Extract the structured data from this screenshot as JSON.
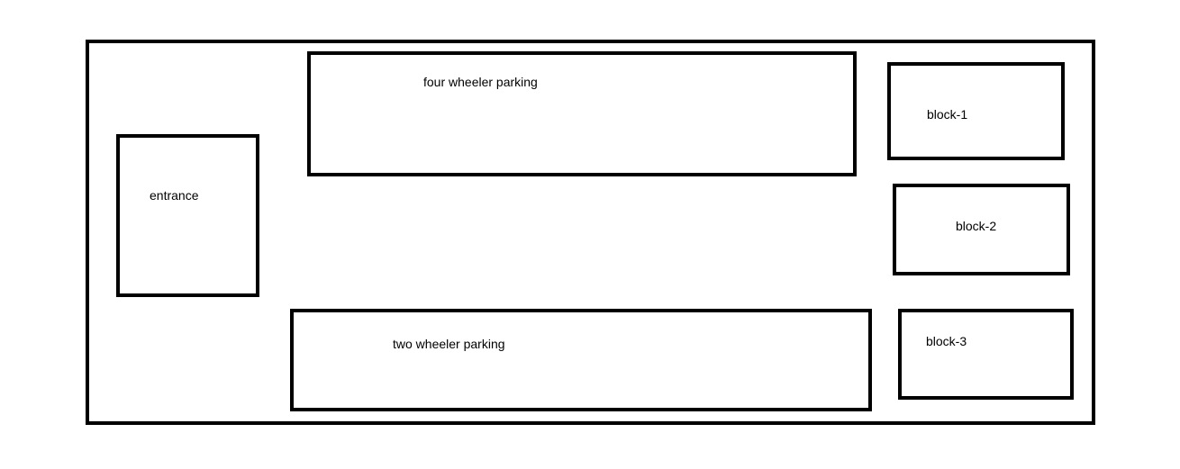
{
  "diagram": {
    "areas": {
      "entrance": {
        "label": "entrance"
      },
      "four_wheeler_parking": {
        "label": "four wheeler parking"
      },
      "two_wheeler_parking": {
        "label": "two wheeler parking"
      },
      "block_1": {
        "label": "block-1"
      },
      "block_2": {
        "label": "block-2"
      },
      "block_3": {
        "label": "block-3"
      }
    },
    "colors": {
      "stroke": "#000000",
      "background": "#ffffff"
    }
  }
}
